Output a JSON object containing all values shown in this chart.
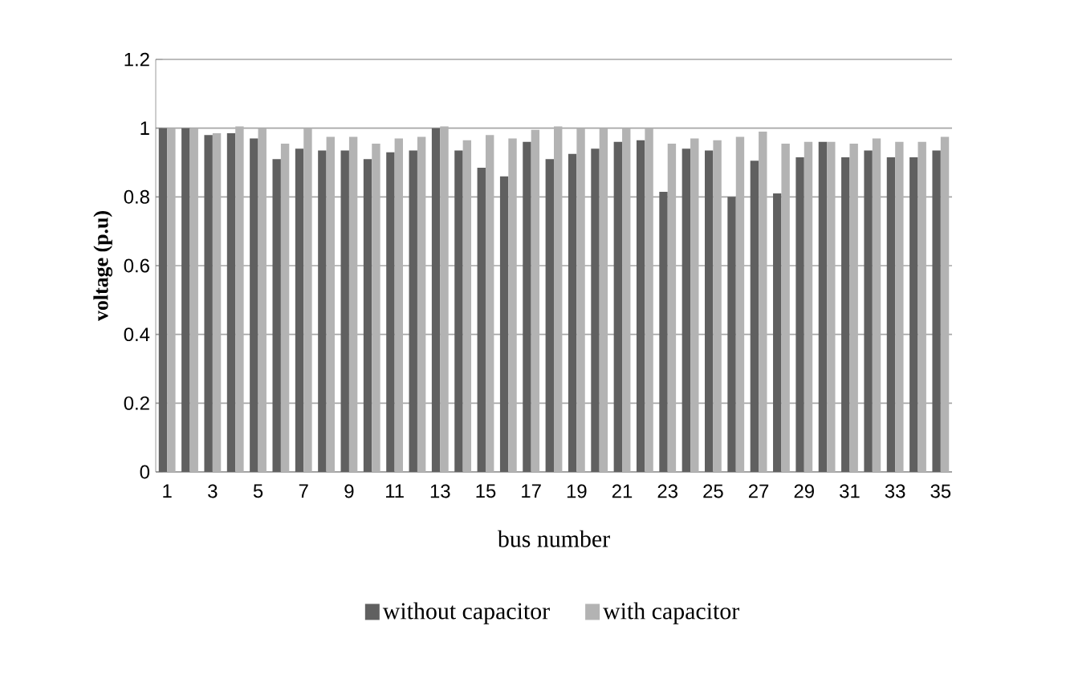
{
  "chart_data": {
    "type": "bar",
    "xlabel": "bus number",
    "ylabel": "**voltage (p.u)**",
    "categories": [
      "1",
      null,
      "3",
      null,
      "5",
      null,
      "7",
      null,
      "9",
      null,
      "11",
      null,
      "13",
      null,
      "15",
      null,
      "17",
      null,
      "19",
      null,
      "21",
      null,
      "23",
      null,
      "25",
      null,
      "27",
      null,
      "29",
      null,
      "31",
      null,
      "33",
      null,
      "35"
    ],
    "series": [
      {
        "name": "without capacitor",
        "color": "#606060",
        "values": [
          1.0,
          1.0,
          0.98,
          0.985,
          0.97,
          0.91,
          0.94,
          0.935,
          0.935,
          0.91,
          0.93,
          0.935,
          1.0,
          0.935,
          0.885,
          0.86,
          0.96,
          0.91,
          0.925,
          0.94,
          0.96,
          0.965,
          0.815,
          0.94,
          0.935,
          0.8,
          0.905,
          0.81,
          0.915,
          0.96,
          0.915,
          0.935,
          0.915,
          0.915,
          0.935
        ]
      },
      {
        "name": "with capacitor",
        "color": "#b3b3b3",
        "values": [
          1.0,
          1.0,
          0.985,
          1.005,
          1.0,
          0.955,
          1.0,
          0.975,
          0.975,
          0.955,
          0.97,
          0.975,
          1.005,
          0.965,
          0.98,
          0.97,
          0.995,
          1.005,
          1.0,
          1.0,
          1.0,
          1.0,
          0.955,
          0.97,
          0.965,
          0.975,
          0.99,
          0.955,
          0.96,
          0.96,
          0.955,
          0.97,
          0.96,
          0.96,
          0.975
        ]
      }
    ],
    "ylim": [
      0,
      1.2
    ],
    "yticks": [
      0,
      0.2,
      0.4,
      0.6,
      0.8,
      1,
      1.2
    ],
    "grid": "y",
    "legend": "bottom"
  }
}
